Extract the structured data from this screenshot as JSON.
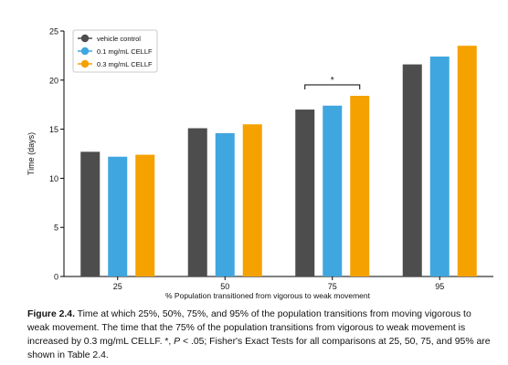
{
  "chart_data": {
    "type": "bar",
    "xlabel": "% Population transitioned from vigorous to weak movement",
    "ylabel": "Time (days)",
    "ylim": [
      0,
      25
    ],
    "yticks": [
      0,
      5,
      10,
      15,
      20,
      25
    ],
    "categories": [
      "25",
      "50",
      "75",
      "95"
    ],
    "series": [
      {
        "name": "vehicle control",
        "color": "#4d4d4d",
        "values": [
          12.7,
          15.1,
          17.0,
          21.6
        ]
      },
      {
        "name": "0.1 mg/mL CELLF",
        "color": "#3fa6e0",
        "values": [
          12.2,
          14.6,
          17.4,
          22.4
        ]
      },
      {
        "name": "0.3 mg/mL CELLF",
        "color": "#f5a100",
        "values": [
          12.4,
          15.5,
          18.4,
          23.5
        ]
      }
    ],
    "legend_position": "top-left",
    "significance": {
      "category": "75",
      "label": "*"
    }
  },
  "caption": {
    "figure_label": "Figure 2.4.",
    "text_1": " Time at which 25%, 50%, 75%, and 95% of the population transitions from moving vigorous to weak movement. The time that the 75% of the population transitions from vigorous to weak movement is increased by 0.3 mg/mL CELLF. *, ",
    "p_symbol": "P",
    "text_2": " < .05; Fisher's Exact Tests for all comparisons at 25, 50, 75, and 95% are shown in Table 2.4."
  }
}
